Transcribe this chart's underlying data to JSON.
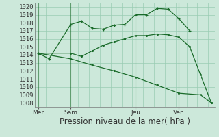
{
  "background_color": "#cce8da",
  "grid_color": "#99ccb3",
  "line_color": "#1a6b2a",
  "ylabel_values": [
    1008,
    1009,
    1010,
    1011,
    1012,
    1013,
    1014,
    1015,
    1016,
    1017,
    1018,
    1019,
    1020
  ],
  "ylim": [
    1007.5,
    1020.5
  ],
  "xlabel": "Pression niveau de la mer( hPa )",
  "xtick_labels": [
    "Mer",
    "Sam",
    "Jeu",
    "Ven"
  ],
  "xtick_positions": [
    0,
    3,
    9,
    13
  ],
  "vline_positions": [
    0,
    3,
    9,
    13
  ],
  "series1_x": [
    0,
    1,
    3,
    4,
    5,
    6,
    7,
    8,
    9,
    10,
    11,
    12,
    13,
    14
  ],
  "series1_y": [
    1014.2,
    1013.5,
    1017.8,
    1018.2,
    1017.3,
    1017.2,
    1017.7,
    1017.8,
    1019.0,
    1019.0,
    1019.8,
    1019.7,
    1018.5,
    1017.0
  ],
  "series2_x": [
    0,
    3,
    4,
    5,
    6,
    7,
    8,
    9,
    10,
    11,
    12,
    13,
    14,
    15,
    16
  ],
  "series2_y": [
    1014.2,
    1014.2,
    1013.8,
    1014.5,
    1015.2,
    1015.6,
    1016.0,
    1016.4,
    1016.4,
    1016.6,
    1016.5,
    1016.2,
    1015.0,
    1011.5,
    1008.0
  ],
  "series3_x": [
    0,
    3,
    5,
    7,
    9,
    11,
    13,
    15,
    16
  ],
  "series3_y": [
    1014.2,
    1013.5,
    1012.7,
    1012.0,
    1011.2,
    1010.2,
    1009.2,
    1009.0,
    1008.0
  ],
  "xlim": [
    -0.3,
    16.3
  ],
  "tick_fontsize": 6.5,
  "xlabel_fontsize": 8.5
}
